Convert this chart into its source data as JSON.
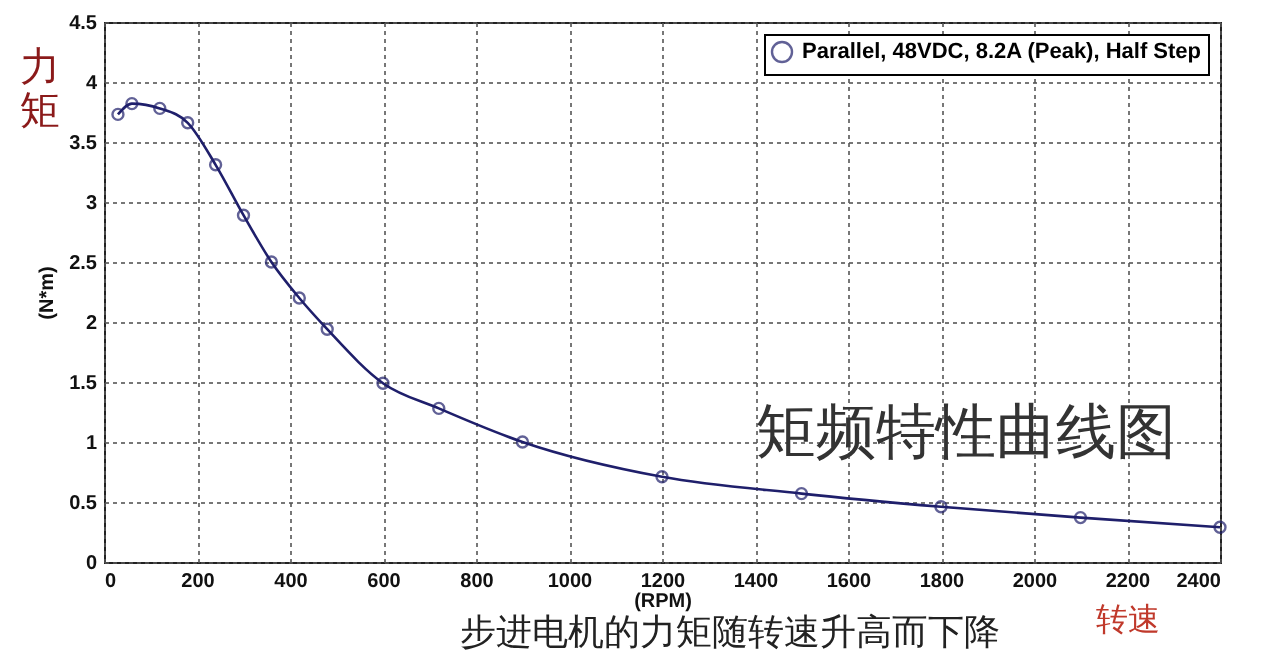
{
  "chart_data": {
    "type": "line",
    "title": "步进电机的力矩随转速升高而下降",
    "xlabel": "(RPM)",
    "ylabel": "(N*m)",
    "annotations": [
      "力矩",
      "矩频特性曲线图",
      "转速"
    ],
    "x": [
      30,
      60,
      120,
      180,
      240,
      300,
      360,
      420,
      480,
      600,
      720,
      900,
      1200,
      1500,
      1800,
      2100,
      2400
    ],
    "series": [
      {
        "name": "Parallel, 48VDC, 8.2A (Peak), Half Step",
        "color": "#1f1f6b",
        "values": [
          3.73,
          3.82,
          3.78,
          3.66,
          3.31,
          2.89,
          2.5,
          2.2,
          1.94,
          1.49,
          1.28,
          1.0,
          0.71,
          0.57,
          0.46,
          0.37,
          0.29
        ]
      }
    ],
    "xlim": [
      0,
      2400
    ],
    "xticks": [
      0,
      200,
      400,
      600,
      800,
      1000,
      1200,
      1400,
      1600,
      1800,
      2000,
      2200,
      2400
    ],
    "ylim": [
      0,
      4.5
    ],
    "yticks": [
      0,
      0.5,
      1,
      1.5,
      2,
      2.5,
      3,
      3.5,
      4,
      4.5
    ],
    "grid": true,
    "legend": "top right",
    "marker": "circle",
    "line_style": "solid"
  }
}
